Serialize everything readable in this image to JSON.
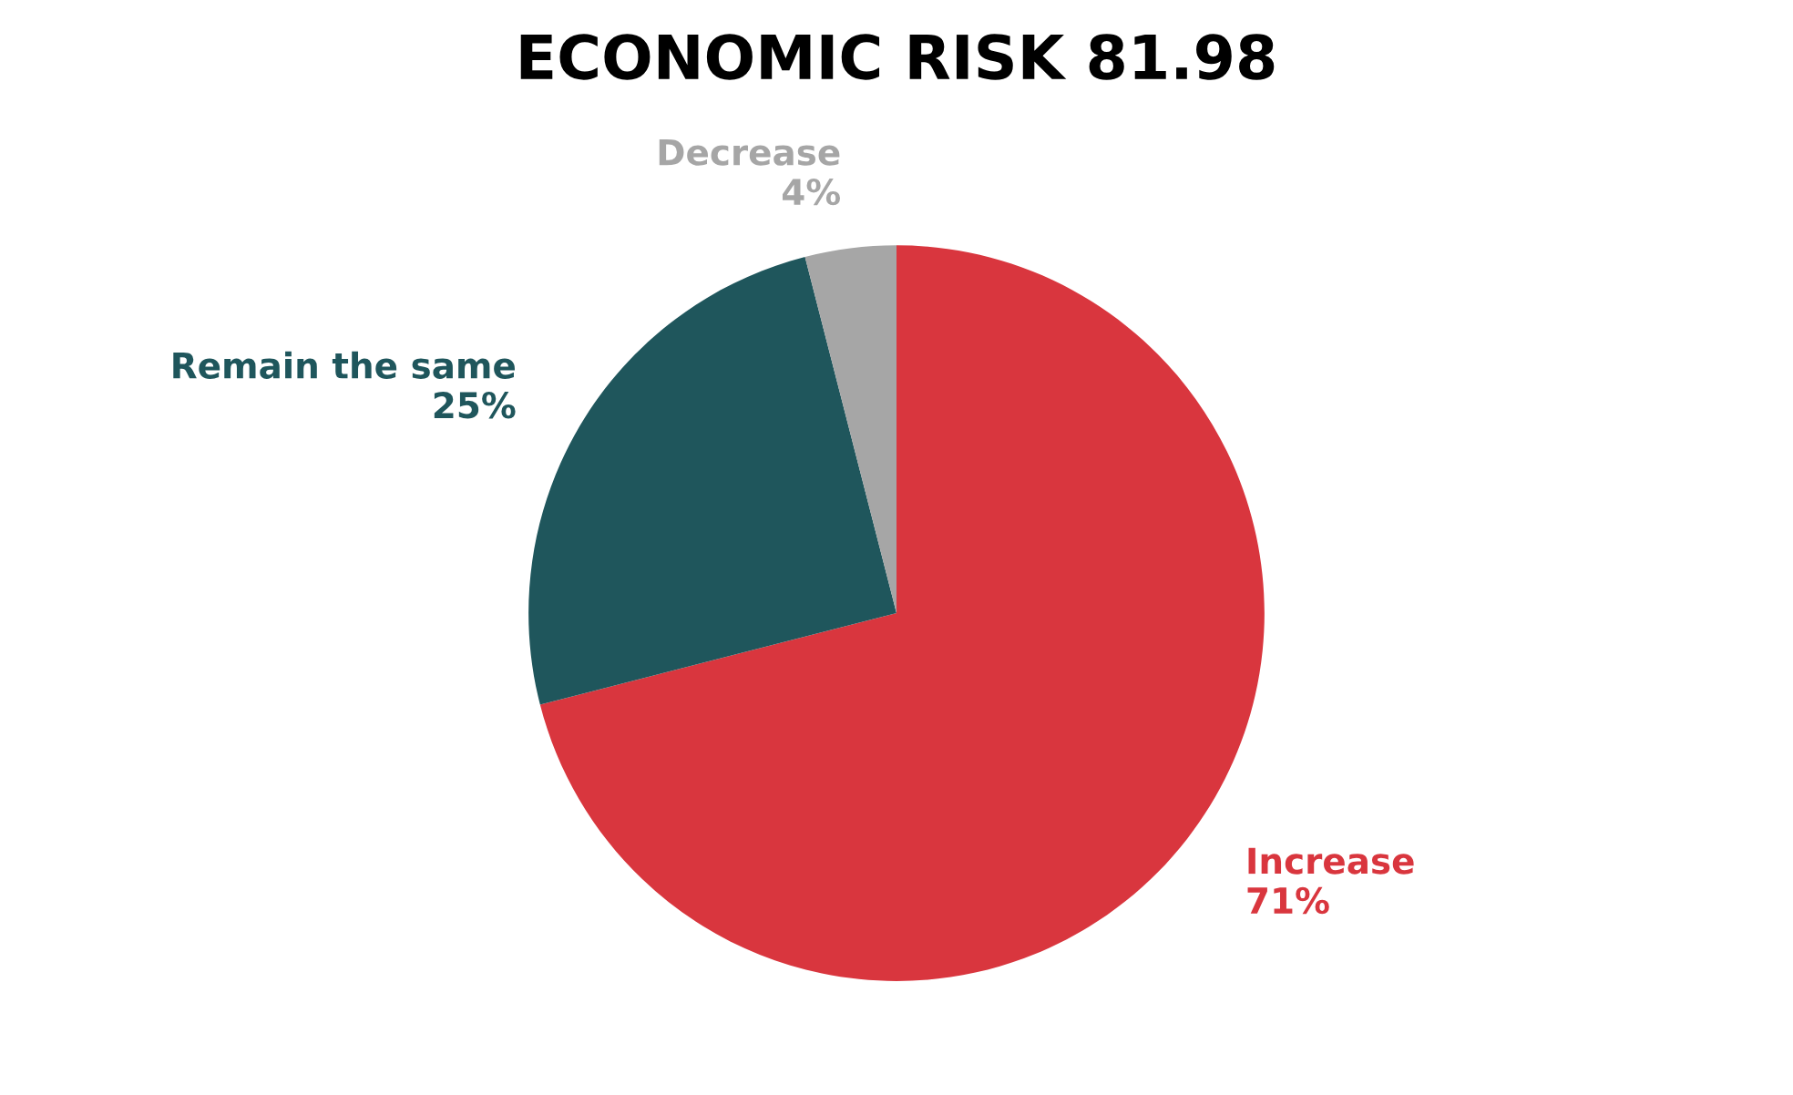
{
  "chart_data": {
    "type": "pie",
    "title": "ECONOMIC RISK 81.98",
    "categories": [
      "Increase",
      "Remain the same",
      "Decrease"
    ],
    "values": [
      71,
      25,
      4
    ],
    "colors": [
      "#d9363e",
      "#1f565c",
      "#a6a6a6"
    ],
    "value_labels": [
      "71%",
      "25%",
      "4%"
    ]
  }
}
